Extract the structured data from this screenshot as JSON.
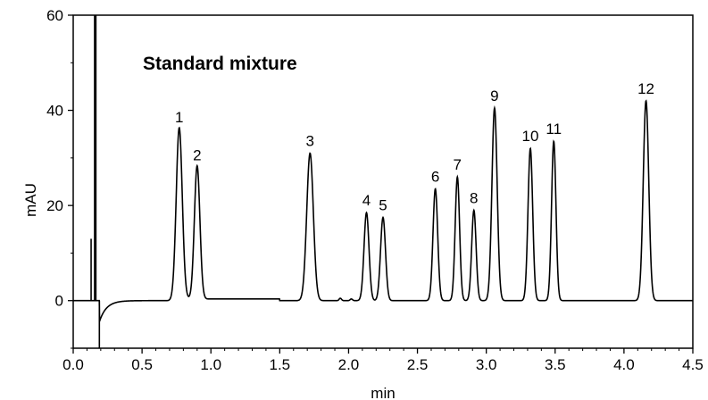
{
  "chart_data": {
    "type": "line",
    "title": "Standard mixture",
    "xlabel": "min",
    "ylabel": "mAU",
    "xlim": [
      0.0,
      4.5
    ],
    "ylim": [
      -10,
      60
    ],
    "x_ticks": [
      "0.0",
      "0.5",
      "1.0",
      "1.5",
      "2.0",
      "2.5",
      "3.0",
      "3.5",
      "4.0",
      "4.5"
    ],
    "y_ticks": [
      "0",
      "20",
      "40",
      "60"
    ],
    "grid": false,
    "legend": "none",
    "line_color": "#000000",
    "peaks": [
      {
        "label": "1",
        "time": 0.77,
        "height": 36.0,
        "width": 0.022
      },
      {
        "label": "2",
        "time": 0.9,
        "height": 28.0,
        "width": 0.02
      },
      {
        "label": "3",
        "time": 1.72,
        "height": 31.0,
        "width": 0.024
      },
      {
        "label": "4",
        "time": 2.13,
        "height": 18.5,
        "width": 0.018
      },
      {
        "label": "5",
        "time": 2.25,
        "height": 17.5,
        "width": 0.018
      },
      {
        "label": "6",
        "time": 2.63,
        "height": 23.5,
        "width": 0.017
      },
      {
        "label": "7",
        "time": 2.79,
        "height": 26.0,
        "width": 0.016
      },
      {
        "label": "8",
        "time": 2.91,
        "height": 19.0,
        "width": 0.016
      },
      {
        "label": "9",
        "time": 3.06,
        "height": 40.5,
        "width": 0.019
      },
      {
        "label": "10",
        "time": 3.32,
        "height": 32.0,
        "width": 0.017
      },
      {
        "label": "11",
        "time": 3.49,
        "height": 33.5,
        "width": 0.016
      },
      {
        "label": "12",
        "time": 4.16,
        "height": 42.0,
        "width": 0.02
      }
    ],
    "injection_artifacts": [
      {
        "time": 0.13,
        "value": 13
      },
      {
        "time": 0.16,
        "value": 60
      },
      {
        "time": 0.19,
        "value": -10
      }
    ]
  }
}
